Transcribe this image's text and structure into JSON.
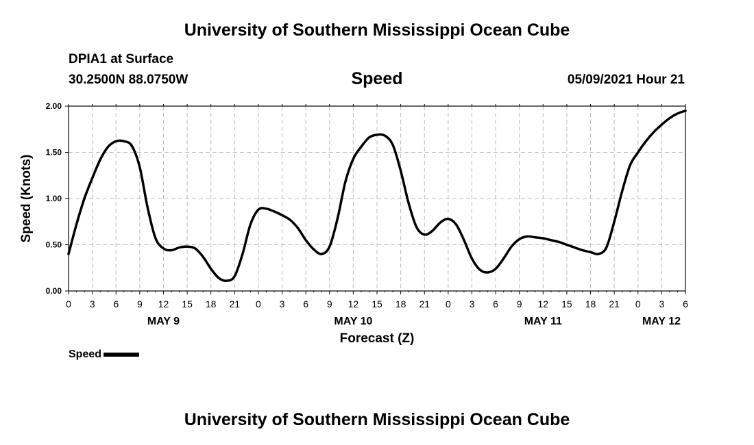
{
  "header": {
    "title": "University of Southern Mississippi Ocean Cube",
    "station": "DPIA1 at Surface",
    "coords": "30.2500N  88.0750W",
    "chart_title": "Speed",
    "datetime": "05/09/2021 Hour 21"
  },
  "footer": {
    "title": "University of Southern Mississippi Ocean Cube"
  },
  "colors": {
    "line": "#000000",
    "grid": "#bbbbbb",
    "background": "#ffffff"
  },
  "chart_data": {
    "type": "line",
    "title": "Speed",
    "xlabel": "Forecast (Z)",
    "ylabel": "Speed (Knots)",
    "ylim": [
      0,
      2
    ],
    "yticks": [
      "0.00",
      "0.50",
      "1.00",
      "1.50",
      "2.00"
    ],
    "xticks": [
      "0",
      "3",
      "6",
      "9",
      "12",
      "15",
      "18",
      "21",
      "0",
      "3",
      "6",
      "9",
      "12",
      "15",
      "18",
      "21",
      "0",
      "3",
      "6",
      "9",
      "12",
      "15",
      "18",
      "21",
      "0",
      "3",
      "6"
    ],
    "date_labels": [
      {
        "label": "MAY 9",
        "at_hour": 12
      },
      {
        "label": "MAY 10",
        "at_hour": 36
      },
      {
        "label": "MAY 11",
        "at_hour": 60
      },
      {
        "label": "MAY 12",
        "at_hour": 78
      }
    ],
    "grid": true,
    "legend": {
      "position": "bottom-left",
      "entries": [
        "Speed"
      ]
    },
    "series": [
      {
        "name": "Speed",
        "hours_from_may9_0000Z": [
          0,
          1,
          2,
          3,
          4,
          5,
          6,
          7,
          8,
          9,
          10,
          11,
          12,
          13,
          14,
          15,
          16,
          17,
          18,
          19,
          20,
          21,
          22,
          23,
          24,
          25,
          26,
          27,
          28,
          29,
          30,
          31,
          32,
          33,
          34,
          35,
          36,
          37,
          38,
          39,
          40,
          41,
          42,
          43,
          44,
          45,
          46,
          47,
          48,
          49,
          50,
          51,
          52,
          53,
          54,
          55,
          56,
          57,
          58,
          59,
          60,
          61,
          62,
          63,
          64,
          65,
          66,
          67,
          68,
          69,
          70,
          71,
          72,
          73,
          74,
          75,
          76,
          77,
          78
        ],
        "values": [
          0.4,
          0.72,
          1.0,
          1.22,
          1.42,
          1.56,
          1.62,
          1.62,
          1.57,
          1.34,
          0.9,
          0.57,
          0.46,
          0.44,
          0.47,
          0.48,
          0.46,
          0.37,
          0.24,
          0.14,
          0.11,
          0.16,
          0.4,
          0.72,
          0.88,
          0.89,
          0.86,
          0.82,
          0.77,
          0.68,
          0.55,
          0.45,
          0.4,
          0.48,
          0.78,
          1.18,
          1.43,
          1.56,
          1.66,
          1.69,
          1.68,
          1.58,
          1.3,
          0.95,
          0.69,
          0.61,
          0.65,
          0.74,
          0.78,
          0.72,
          0.55,
          0.35,
          0.23,
          0.2,
          0.24,
          0.35,
          0.48,
          0.56,
          0.59,
          0.58,
          0.57,
          0.55,
          0.53,
          0.5,
          0.47,
          0.44,
          0.42,
          0.4,
          0.47,
          0.75,
          1.08,
          1.36,
          1.5,
          1.62,
          1.72,
          1.8,
          1.87,
          1.92,
          1.95
        ]
      }
    ]
  },
  "legend_label": "Speed"
}
